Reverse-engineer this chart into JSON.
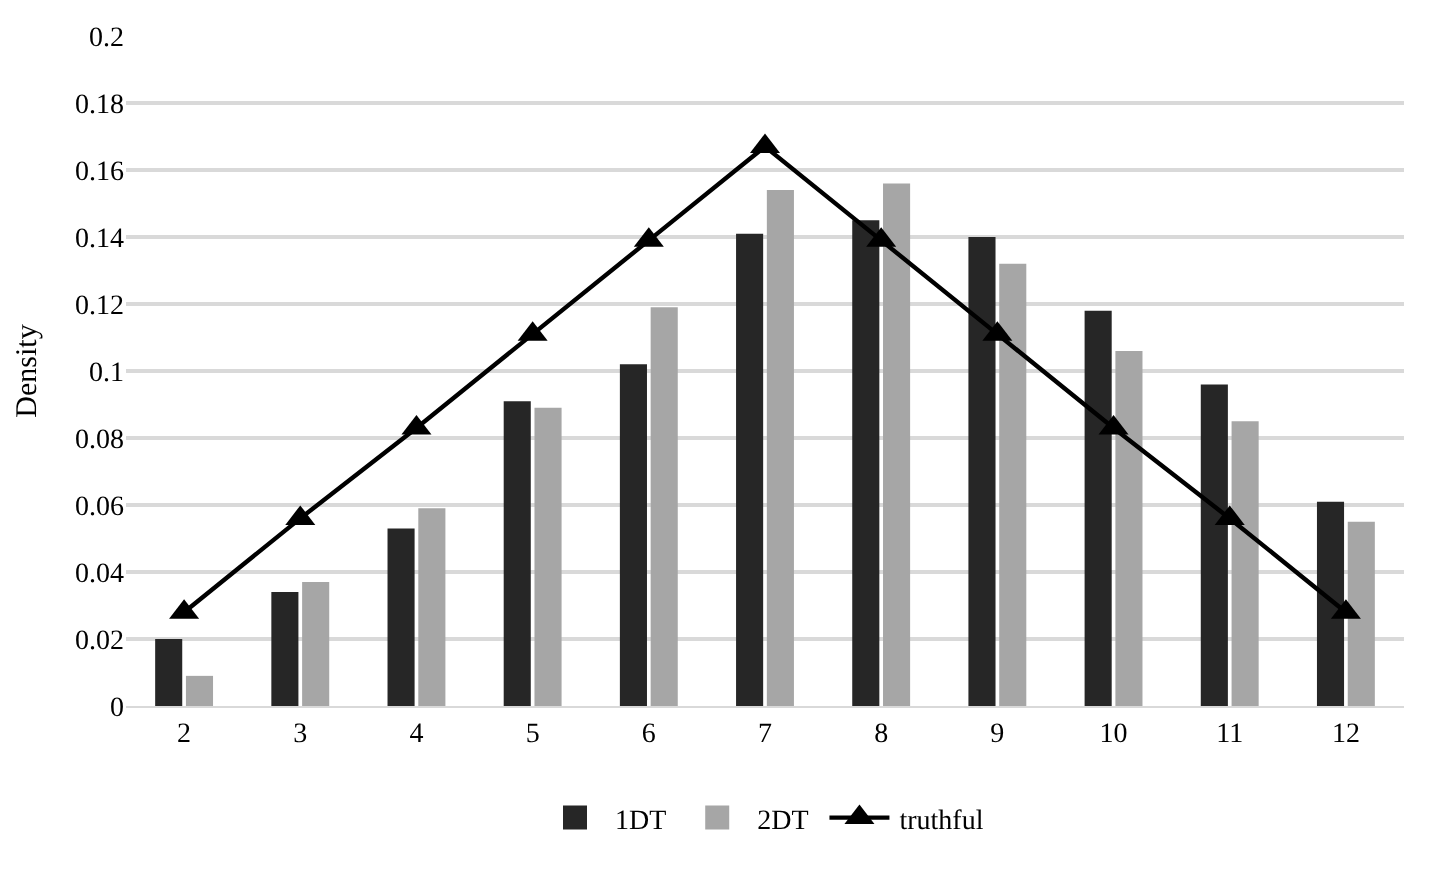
{
  "chart_data": {
    "type": "bar",
    "ylabel": "Density",
    "categories": [
      "2",
      "3",
      "4",
      "5",
      "6",
      "7",
      "8",
      "9",
      "10",
      "11",
      "12"
    ],
    "series": [
      {
        "name": "1DT",
        "color": "#262626",
        "values": [
          0.02,
          0.034,
          0.053,
          0.091,
          0.102,
          0.141,
          0.145,
          0.14,
          0.118,
          0.096,
          0.061
        ]
      },
      {
        "name": "2DT",
        "color": "#a6a6a6",
        "values": [
          0.009,
          0.037,
          0.059,
          0.089,
          0.119,
          0.154,
          0.156,
          0.132,
          0.106,
          0.085,
          0.055
        ]
      },
      {
        "name": "truthful",
        "type": "line",
        "color": "#000000",
        "marker": "triangle",
        "line_style": "solid",
        "values": [
          0.028,
          0.056,
          0.083,
          0.111,
          0.139,
          0.167,
          0.139,
          0.111,
          0.083,
          0.056,
          0.028
        ]
      }
    ],
    "ylim": [
      0,
      0.2
    ],
    "yticks": [
      0,
      0.02,
      0.04,
      0.06,
      0.08,
      0.1,
      0.12,
      0.14,
      0.16,
      0.18,
      0.2
    ],
    "grid": "y",
    "legend": "bottom"
  }
}
